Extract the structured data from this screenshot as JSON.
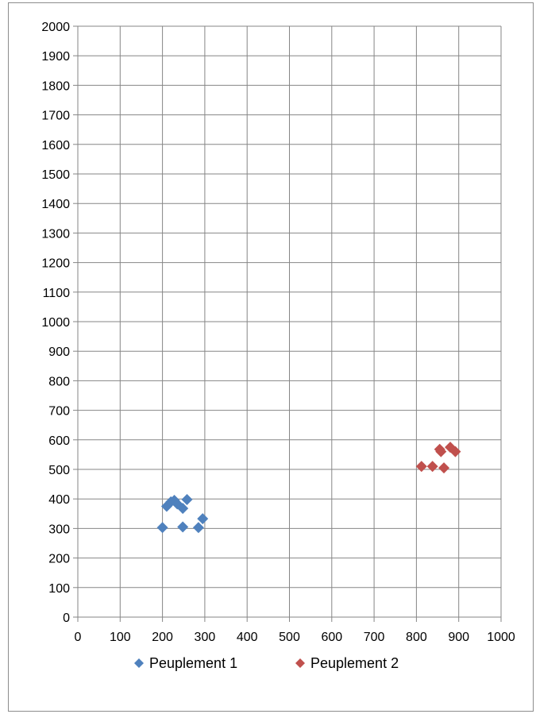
{
  "chart_data": {
    "type": "scatter",
    "title": "",
    "xlabel": "",
    "ylabel": "",
    "xlim": [
      0,
      1000
    ],
    "ylim": [
      0,
      2000
    ],
    "x_ticks": [
      0,
      100,
      200,
      300,
      400,
      500,
      600,
      700,
      800,
      900,
      1000
    ],
    "y_ticks": [
      0,
      100,
      200,
      300,
      400,
      500,
      600,
      700,
      800,
      900,
      1000,
      1100,
      1200,
      1300,
      1400,
      1500,
      1600,
      1700,
      1800,
      1900,
      2000
    ],
    "grid": true,
    "legend_position": "bottom",
    "series": [
      {
        "name": "Peuplement 1",
        "color": "#4F81BD",
        "marker": "diamond",
        "points": [
          {
            "x": 200,
            "y": 303
          },
          {
            "x": 210,
            "y": 375
          },
          {
            "x": 220,
            "y": 390
          },
          {
            "x": 228,
            "y": 395
          },
          {
            "x": 235,
            "y": 383
          },
          {
            "x": 248,
            "y": 368
          },
          {
            "x": 248,
            "y": 305
          },
          {
            "x": 258,
            "y": 398
          },
          {
            "x": 285,
            "y": 303
          },
          {
            "x": 295,
            "y": 333
          }
        ]
      },
      {
        "name": "Peuplement 2",
        "color": "#C0504D",
        "marker": "diamond",
        "points": [
          {
            "x": 812,
            "y": 510
          },
          {
            "x": 838,
            "y": 510
          },
          {
            "x": 855,
            "y": 568
          },
          {
            "x": 858,
            "y": 560
          },
          {
            "x": 865,
            "y": 505
          },
          {
            "x": 880,
            "y": 575
          },
          {
            "x": 892,
            "y": 560
          }
        ]
      }
    ]
  }
}
